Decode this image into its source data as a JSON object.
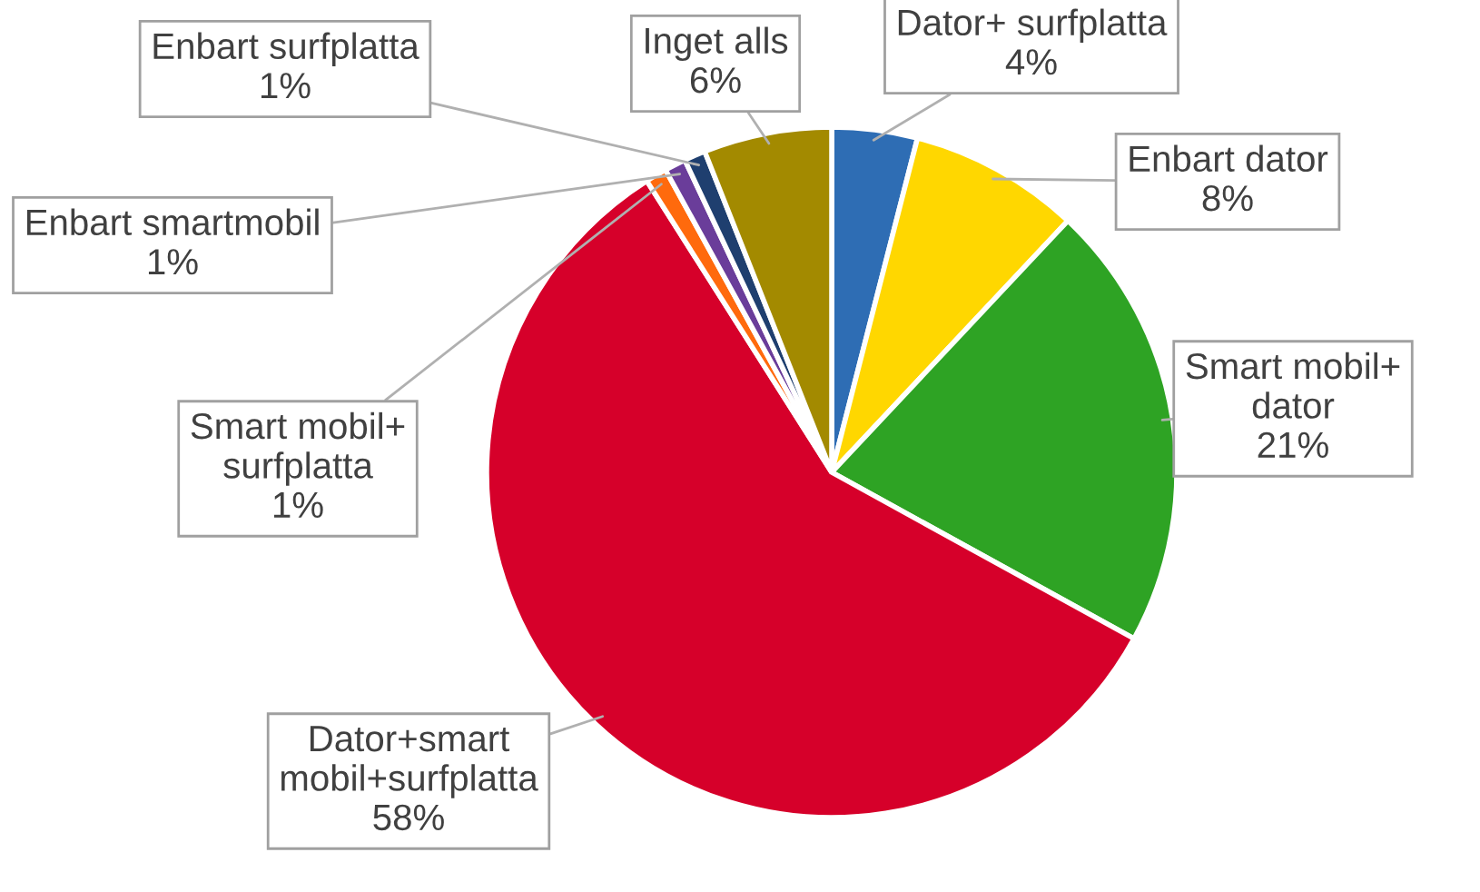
{
  "chart_data": {
    "type": "pie",
    "categories": [
      "Dator+ surfplatta",
      "Enbart dator",
      "Smart mobil+\ndator",
      "Dator+smart\nmobil+surfplatta",
      "Smart mobil+\nsurfplatta",
      "Enbart smartmobil",
      "Enbart surfplatta",
      "Inget alls"
    ],
    "values": [
      4,
      8,
      21,
      58,
      1,
      1,
      1,
      6
    ],
    "colors": [
      "#2e6db4",
      "#ffd700",
      "#2ea324",
      "#d6002a",
      "#ff6a0d",
      "#6a3d9a",
      "#1f3f6f",
      "#a38a00"
    ],
    "value_labels": [
      "4%",
      "8%",
      "21%",
      "58%",
      "1%",
      "1%",
      "1%",
      "6%"
    ],
    "legend": false
  }
}
